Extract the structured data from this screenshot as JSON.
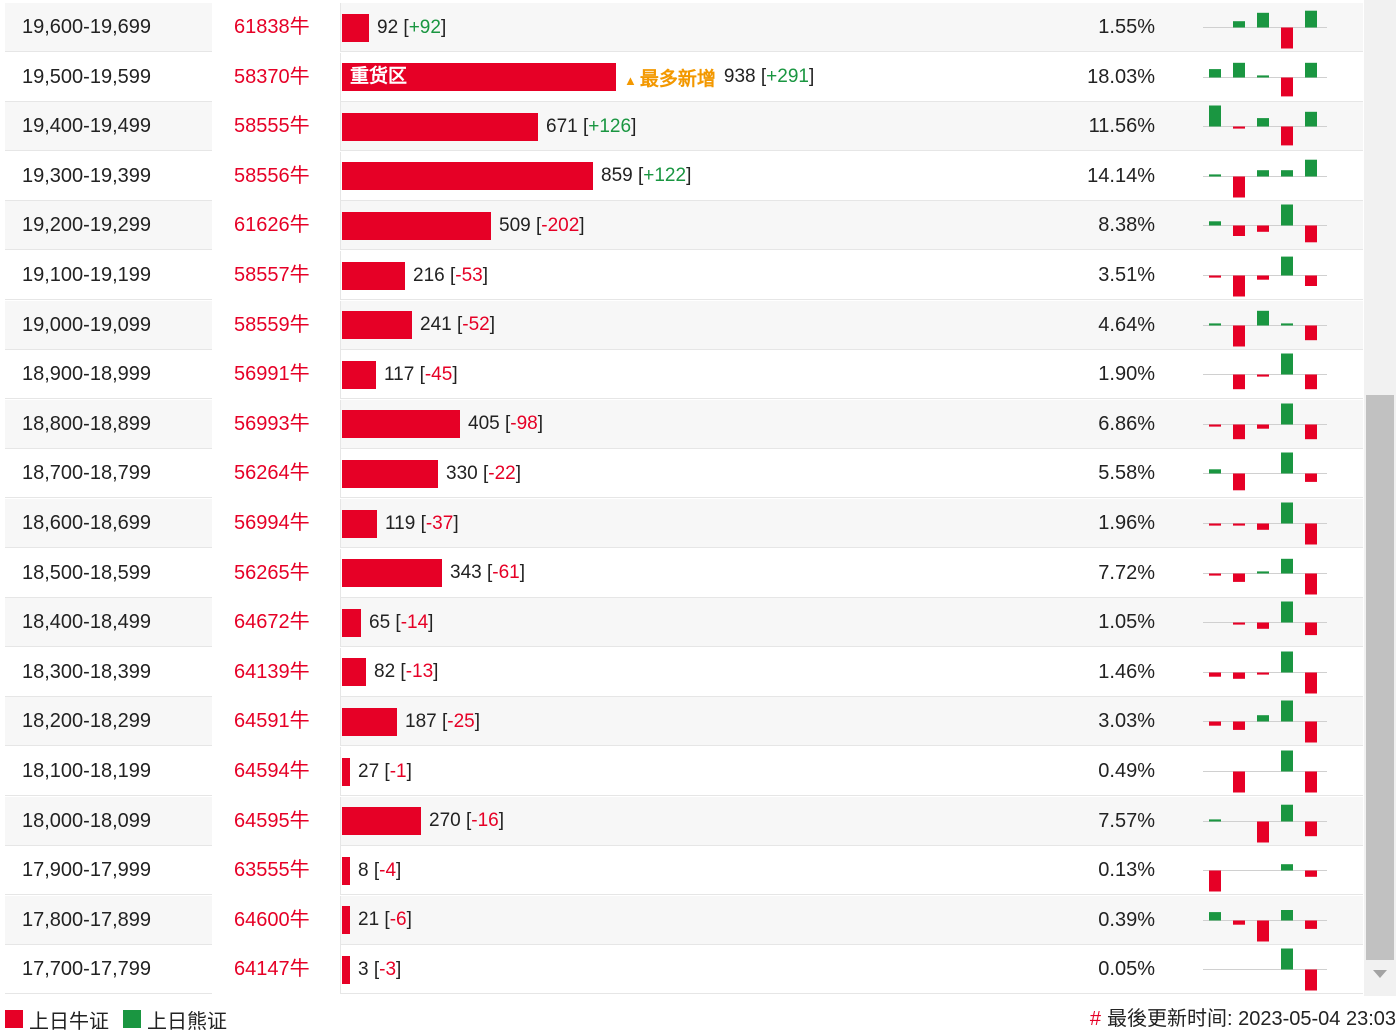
{
  "colors": {
    "bull": "#e60026",
    "bear": "#1a9641",
    "accent": "#f39800"
  },
  "rows": [
    {
      "range": "19,600-19,699",
      "code": "61838牛",
      "value": 92,
      "value_text": "92",
      "change": "+92",
      "pct": "1.55%",
      "tag_label": "",
      "spark": [
        [
          1,
          3
        ],
        [
          2,
          7
        ],
        [
          3,
          -10
        ],
        [
          4,
          8
        ]
      ]
    },
    {
      "range": "19,500-19,599",
      "code": "58370牛",
      "value": 938,
      "value_text": "938",
      "change": "+291",
      "pct": "18.03%",
      "bar_label": "重货区",
      "tag_label": "最多新增",
      "spark": [
        [
          0,
          4
        ],
        [
          1,
          7
        ],
        [
          2,
          1
        ],
        [
          3,
          -9
        ],
        [
          4,
          7
        ]
      ]
    },
    {
      "range": "19,400-19,499",
      "code": "58555牛",
      "value": 671,
      "value_text": "671",
      "change": "+126",
      "pct": "11.56%",
      "tag_label": "",
      "spark": [
        [
          0,
          10
        ],
        [
          1,
          -1
        ],
        [
          2,
          4
        ],
        [
          3,
          -9
        ],
        [
          4,
          7
        ]
      ]
    },
    {
      "range": "19,300-19,399",
      "code": "58556牛",
      "value": 859,
      "value_text": "859",
      "change": "+122",
      "pct": "14.14%",
      "tag_label": "",
      "spark": [
        [
          0,
          1
        ],
        [
          1,
          -10
        ],
        [
          2,
          3
        ],
        [
          3,
          3
        ],
        [
          4,
          8
        ]
      ]
    },
    {
      "range": "19,200-19,299",
      "code": "61626牛",
      "value": 509,
      "value_text": "509",
      "change": "-202",
      "pct": "8.38%",
      "tag_label": "",
      "spark": [
        [
          0,
          2
        ],
        [
          1,
          -5
        ],
        [
          2,
          -3
        ],
        [
          3,
          10
        ],
        [
          4,
          -8
        ]
      ]
    },
    {
      "range": "19,100-19,199",
      "code": "58557牛",
      "value": 216,
      "value_text": "216",
      "change": "-53",
      "pct": "3.51%",
      "tag_label": "",
      "spark": [
        [
          0,
          -1
        ],
        [
          1,
          -10
        ],
        [
          2,
          -2
        ],
        [
          3,
          9
        ],
        [
          4,
          -5
        ]
      ]
    },
    {
      "range": "19,000-19,099",
      "code": "58559牛",
      "value": 241,
      "value_text": "241",
      "change": "-52",
      "pct": "4.64%",
      "tag_label": "",
      "spark": [
        [
          0,
          1
        ],
        [
          1,
          -10
        ],
        [
          2,
          7
        ],
        [
          3,
          1
        ],
        [
          4,
          -7
        ]
      ]
    },
    {
      "range": "18,900-18,999",
      "code": "56991牛",
      "value": 117,
      "value_text": "117",
      "change": "-45",
      "pct": "1.90%",
      "tag_label": "",
      "spark": [
        [
          1,
          -7
        ],
        [
          2,
          -1
        ],
        [
          3,
          10
        ],
        [
          4,
          -7
        ]
      ]
    },
    {
      "range": "18,800-18,899",
      "code": "56993牛",
      "value": 405,
      "value_text": "405",
      "change": "-98",
      "pct": "6.86%",
      "tag_label": "",
      "spark": [
        [
          0,
          -1
        ],
        [
          1,
          -7
        ],
        [
          2,
          -2
        ],
        [
          3,
          10
        ],
        [
          4,
          -7
        ]
      ]
    },
    {
      "range": "18,700-18,799",
      "code": "56264牛",
      "value": 330,
      "value_text": "330",
      "change": "-22",
      "pct": "5.58%",
      "tag_label": "",
      "spark": [
        [
          0,
          2
        ],
        [
          1,
          -8
        ],
        [
          3,
          10
        ],
        [
          4,
          -4
        ]
      ]
    },
    {
      "range": "18,600-18,699",
      "code": "56994牛",
      "value": 119,
      "value_text": "119",
      "change": "-37",
      "pct": "1.96%",
      "tag_label": "",
      "spark": [
        [
          0,
          -1
        ],
        [
          1,
          -1
        ],
        [
          2,
          -3
        ],
        [
          3,
          10
        ],
        [
          4,
          -10
        ]
      ]
    },
    {
      "range": "18,500-18,599",
      "code": "56265牛",
      "value": 343,
      "value_text": "343",
      "change": "-61",
      "pct": "7.72%",
      "tag_label": "",
      "spark": [
        [
          0,
          -1
        ],
        [
          1,
          -4
        ],
        [
          2,
          1
        ],
        [
          3,
          7
        ],
        [
          4,
          -10
        ]
      ]
    },
    {
      "range": "18,400-18,499",
      "code": "64672牛",
      "value": 65,
      "value_text": "65",
      "change": "-14",
      "pct": "1.05%",
      "tag_label": "",
      "spark": [
        [
          1,
          -1
        ],
        [
          2,
          -3
        ],
        [
          3,
          10
        ],
        [
          4,
          -6
        ]
      ]
    },
    {
      "range": "18,300-18,399",
      "code": "64139牛",
      "value": 82,
      "value_text": "82",
      "change": "-13",
      "pct": "1.46%",
      "tag_label": "",
      "spark": [
        [
          0,
          -2
        ],
        [
          1,
          -3
        ],
        [
          2,
          -1
        ],
        [
          3,
          10
        ],
        [
          4,
          -10
        ]
      ]
    },
    {
      "range": "18,200-18,299",
      "code": "64591牛",
      "value": 187,
      "value_text": "187",
      "change": "-25",
      "pct": "3.03%",
      "tag_label": "",
      "spark": [
        [
          0,
          -2
        ],
        [
          1,
          -4
        ],
        [
          2,
          3
        ],
        [
          3,
          10
        ],
        [
          4,
          -10
        ]
      ]
    },
    {
      "range": "18,100-18,199",
      "code": "64594牛",
      "value": 27,
      "value_text": "27",
      "change": "-1",
      "pct": "0.49%",
      "tag_label": "",
      "spark": [
        [
          1,
          -10
        ],
        [
          3,
          10
        ],
        [
          4,
          -10
        ]
      ]
    },
    {
      "range": "18,000-18,099",
      "code": "64595牛",
      "value": 270,
      "value_text": "270",
      "change": "-16",
      "pct": "7.57%",
      "tag_label": "",
      "spark": [
        [
          0,
          1
        ],
        [
          2,
          -10
        ],
        [
          3,
          8
        ],
        [
          4,
          -7
        ]
      ]
    },
    {
      "range": "17,900-17,999",
      "code": "63555牛",
      "value": 8,
      "value_text": "8",
      "change": "-4",
      "pct": "0.13%",
      "tag_label": "",
      "spark": [
        [
          0,
          -10
        ],
        [
          3,
          3
        ],
        [
          4,
          -3
        ]
      ]
    },
    {
      "range": "17,800-17,899",
      "code": "64600牛",
      "value": 21,
      "value_text": "21",
      "change": "-6",
      "pct": "0.39%",
      "tag_label": "",
      "spark": [
        [
          0,
          4
        ],
        [
          1,
          -2
        ],
        [
          2,
          -10
        ],
        [
          3,
          5
        ],
        [
          4,
          -4
        ]
      ]
    },
    {
      "range": "17,700-17,799",
      "code": "64147牛",
      "value": 3,
      "value_text": "3",
      "change": "-3",
      "pct": "0.05%",
      "tag_label": "",
      "spark": [
        [
          3,
          10
        ],
        [
          4,
          -10
        ]
      ]
    }
  ],
  "legend": {
    "bull_label": "上日牛证",
    "bear_label": "上日熊证"
  },
  "update": {
    "hash": "#",
    "text": "最後更新时间: 2023-05-04 23:03"
  }
}
